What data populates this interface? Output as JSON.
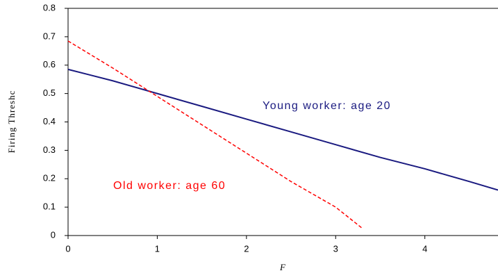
{
  "chart_data": {
    "type": "line",
    "x_label": "F",
    "y_label": "Firing Threshc",
    "annotations": [
      "Young worker: age 20",
      "Old worker: age 60"
    ],
    "series": [
      {
        "name": "Young worker",
        "color": "#1a1a80",
        "dash": false,
        "x": [
          0,
          0.5,
          1,
          1.5,
          2,
          2.5,
          3,
          3.5,
          4,
          4.5,
          4.82
        ],
        "values": [
          0.585,
          0.545,
          0.5,
          0.455,
          0.41,
          0.365,
          0.32,
          0.275,
          0.235,
          0.19,
          0.16
        ]
      },
      {
        "name": "Old worker",
        "color": "#ff0000",
        "dash": true,
        "x": [
          0,
          0.5,
          1,
          1.5,
          2,
          2.5,
          3,
          3.3
        ],
        "values": [
          0.685,
          0.59,
          0.49,
          0.39,
          0.29,
          0.19,
          0.1,
          0.025
        ]
      }
    ],
    "xlim": [
      0,
      4.82
    ],
    "xticks": [
      0,
      1,
      2,
      3,
      4
    ],
    "ylim": [
      0,
      0.8
    ],
    "yticks": [
      0,
      0.1,
      0.2,
      0.3,
      0.4,
      0.5,
      0.6,
      0.7,
      0.8
    ]
  }
}
